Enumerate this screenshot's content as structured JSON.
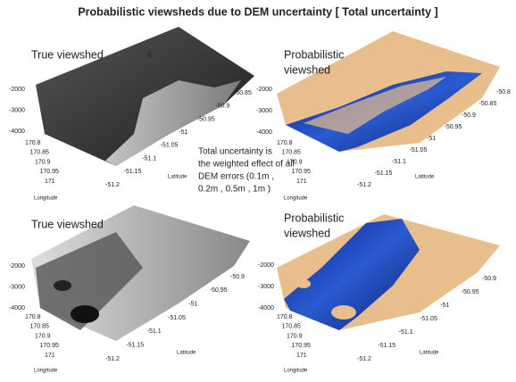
{
  "title": "Probabilistic viewsheds due to DEM uncertainty [ Total uncertainty ]",
  "note": [
    "Total uncertainty is",
    "the weighted effect of all",
    "DEM errors (0.1m ,",
    "0.2m , 0.5m , 1m )"
  ],
  "panels": [
    {
      "title": [
        "True viewshed"
      ],
      "annotation": "6",
      "z_ticks": [
        "-2000",
        "-3000",
        "-4000"
      ],
      "longitude_ticks": [
        "170.8",
        "170.85",
        "170.9",
        "170.95",
        "171"
      ],
      "latitude_ticks": [
        "-51.2",
        "-51.15",
        "-51.1",
        "-51.05",
        "-51",
        "-50.95",
        "-50.9",
        "-50.85"
      ],
      "x_label": "Longitude",
      "y_label": "Latitude"
    },
    {
      "title": [
        "Probabilistic",
        "viewshed"
      ],
      "z_ticks": [
        "-2000",
        "-3000",
        "-4000"
      ],
      "longitude_ticks": [
        "170.8",
        "170.85",
        "170.9",
        "170.95",
        "171"
      ],
      "latitude_ticks": [
        "-51.2",
        "-51.15",
        "-51.1",
        "-51.05",
        "-51",
        "-50.95",
        "-50.9",
        "-50.85",
        "-50.8"
      ],
      "x_label": "Longitude",
      "y_label": "Latitude"
    },
    {
      "title": [
        "True viewshed"
      ],
      "z_ticks": [
        "-2000",
        "-3000",
        "-4000"
      ],
      "longitude_ticks": [
        "170.8",
        "170.85",
        "170.9",
        "170.95",
        "171"
      ],
      "latitude_ticks": [
        "-51.2",
        "-51.15",
        "-51.1",
        "-51.05",
        "-51",
        "-50.95",
        "-50.9"
      ],
      "x_label": "Longitude",
      "y_label": "Latitude"
    },
    {
      "title": [
        "Probabilistic",
        "viewshed"
      ],
      "z_ticks": [
        "-2000",
        "-3000",
        "-4000"
      ],
      "longitude_ticks": [
        "170.8",
        "170.85",
        "170.9",
        "170.95",
        "171"
      ],
      "latitude_ticks": [
        "-51.2",
        "-51.15",
        "-51.1",
        "-51.05",
        "-51",
        "-50.95",
        "-50.9"
      ],
      "x_label": "Longitude",
      "y_label": "Latitude"
    }
  ]
}
